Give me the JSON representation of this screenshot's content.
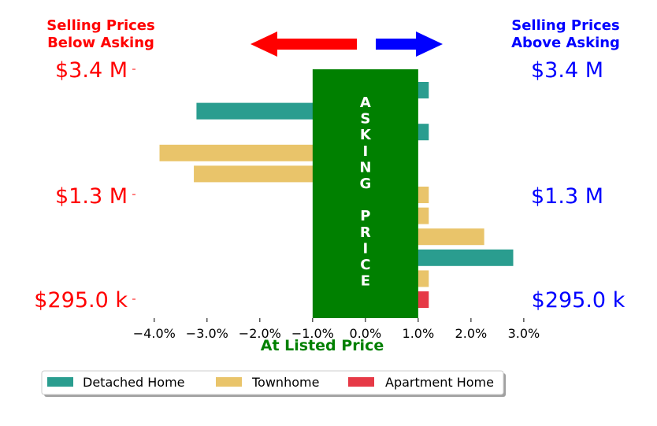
{
  "header": {
    "left_title_line1": "Selling Prices",
    "left_title_line2": "Below Asking",
    "right_title_line1": "Selling Prices",
    "right_title_line2": "Above Asking"
  },
  "colors": {
    "below": "#ff0000",
    "above": "#0000ff",
    "asking": "#008000",
    "detached": "#2a9d8f",
    "townhome": "#e9c46a",
    "apartment": "#e63946"
  },
  "asking_label": "ASKING PRICE",
  "chart_data": {
    "type": "bar",
    "orientation": "horizontal",
    "xlabel": "At Listed Price",
    "xlim": [
      -4.4,
      3.3
    ],
    "x_ticks": [
      -4.0,
      -3.0,
      -2.0,
      -1.0,
      0.0,
      1.0,
      2.0,
      3.0
    ],
    "x_tick_labels": [
      "−4.0%",
      "−3.0%",
      "−2.0%",
      "−1.0%",
      "0.0%",
      "1.0%",
      "2.0%",
      "3.0%"
    ],
    "asking_band": [
      -1.0,
      1.0
    ],
    "price_axis": {
      "left_labels": [
        "$3.4 M",
        "$1.3 M",
        "$295.0 k"
      ],
      "right_labels": [
        "$3.4 M",
        "$1.3 M",
        "$295.0 k"
      ]
    },
    "legend": {
      "placement": "bottom-left",
      "entries": [
        "Detached Home",
        "Townhome",
        "Apartment Home"
      ]
    },
    "rows": [
      {
        "type": "Detached Home",
        "value": 1.2
      },
      {
        "type": "Detached Home",
        "value": -3.2
      },
      {
        "type": "Detached Home",
        "value": 1.2
      },
      {
        "type": "Townhome",
        "value": -3.9
      },
      {
        "type": "Townhome",
        "value": -3.25
      },
      {
        "type": "Townhome",
        "value": 1.2
      },
      {
        "type": "Townhome",
        "value": 1.2
      },
      {
        "type": "Townhome",
        "value": 2.25
      },
      {
        "type": "Detached Home",
        "value": 2.8
      },
      {
        "type": "Townhome",
        "value": 1.2
      },
      {
        "type": "Apartment Home",
        "value": 1.2
      }
    ]
  }
}
